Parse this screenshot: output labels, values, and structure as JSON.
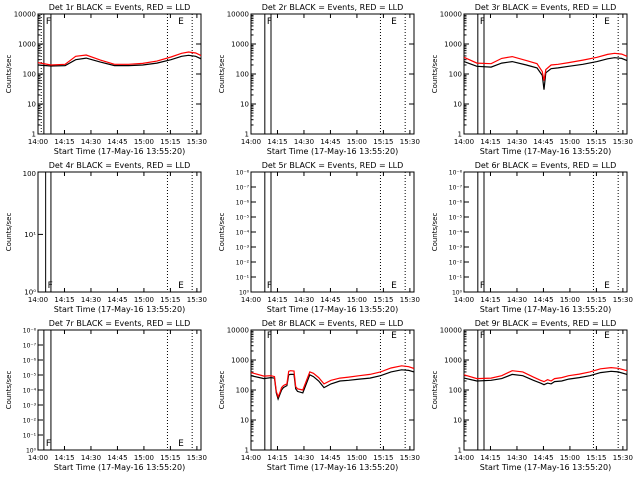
{
  "figure": {
    "background": "#ffffff",
    "axis_color": "#000000",
    "events_color": "#000000",
    "lld_color": "#ff0000"
  },
  "panel_text": {
    "ylabel": "Counts/sec",
    "xlabel": "Start Time (17-May-16 13:55:20)",
    "x_ticks": [
      "14:00",
      "14:15",
      "14:30",
      "14:45",
      "15:00",
      "15:15",
      "15:30"
    ],
    "log_ticks": [
      "1",
      "10",
      "100",
      "1000",
      "10000"
    ],
    "tiny_ticks": [
      "10⁻⁸",
      "10⁻⁷",
      "10⁻⁶",
      "10⁻⁵",
      "10⁻⁴",
      "10⁻³",
      "10⁻²",
      "10⁻¹",
      "10⁰"
    ],
    "pow_ticks": [
      "10⁰",
      "10¹"
    ],
    "marker_F": "F",
    "marker_E": "E"
  },
  "chart_data": [
    {
      "type": "line",
      "title": "Det 1r BLACK = Events, RED = LLD",
      "scale": "log4",
      "x_range_min": [
        4.67,
        97
      ],
      "solid_lines_min": [
        8,
        12
      ],
      "dotted_lines_min": [
        6.5,
        78,
        92
      ],
      "series": [
        {
          "name": "Events",
          "x_min": [
            4.67,
            12,
            20,
            26,
            32,
            40,
            48,
            56,
            64,
            72,
            80,
            86,
            90,
            94,
            97
          ],
          "y": [
            200,
            185,
            190,
            300,
            340,
            250,
            190,
            190,
            200,
            230,
            300,
            390,
            420,
            390,
            320
          ]
        },
        {
          "name": "LLD",
          "x_min": [
            4.67,
            12,
            20,
            26,
            32,
            40,
            48,
            56,
            64,
            72,
            80,
            86,
            90,
            94,
            97
          ],
          "y": [
            240,
            200,
            210,
            390,
            430,
            290,
            210,
            210,
            225,
            270,
            370,
            490,
            540,
            500,
            410
          ]
        }
      ]
    },
    {
      "type": "line",
      "title": "Det 2r BLACK = Events, RED = LLD",
      "scale": "log4",
      "x_range_min": [
        4.67,
        97
      ],
      "solid_lines_min": [
        12.5,
        16
      ],
      "dotted_lines_min": [
        78,
        92
      ],
      "series": []
    },
    {
      "type": "line",
      "title": "Det 3r BLACK = Events, RED = LLD",
      "scale": "log4",
      "x_range_min": [
        4.67,
        97
      ],
      "solid_lines_min": [
        12.5,
        16
      ],
      "dotted_lines_min": [
        78,
        92
      ],
      "series": [
        {
          "name": "Events",
          "x_min": [
            4.67,
            12,
            20,
            26,
            32,
            40,
            46,
            49,
            50,
            51,
            54,
            58,
            64,
            72,
            80,
            86,
            90,
            94,
            97
          ],
          "y": [
            260,
            180,
            170,
            230,
            260,
            200,
            160,
            90,
            30,
            110,
            150,
            160,
            180,
            210,
            260,
            320,
            350,
            330,
            280
          ]
        },
        {
          "name": "LLD",
          "x_min": [
            4.67,
            12,
            20,
            26,
            32,
            40,
            46,
            49,
            50,
            51,
            54,
            58,
            64,
            72,
            80,
            86,
            90,
            94,
            97
          ],
          "y": [
            360,
            230,
            220,
            330,
            380,
            280,
            220,
            120,
            60,
            140,
            200,
            210,
            240,
            290,
            360,
            450,
            490,
            460,
            390
          ]
        }
      ]
    },
    {
      "type": "line",
      "title": "Det 4r BLACK = Events, RED = LLD",
      "scale": "pow",
      "x_range_min": [
        4.67,
        97
      ],
      "solid_lines_min": [
        9,
        12
      ],
      "dotted_lines_min": [
        78,
        92
      ],
      "series": []
    },
    {
      "type": "line",
      "title": "Det 5r BLACK = Events, RED = LLD",
      "scale": "tiny",
      "x_range_min": [
        4.67,
        97
      ],
      "solid_lines_min": [
        12.5,
        16
      ],
      "dotted_lines_min": [
        78,
        92
      ],
      "series": []
    },
    {
      "type": "line",
      "title": "Det 6r BLACK = Events, RED = LLD",
      "scale": "tiny",
      "x_range_min": [
        4.67,
        97
      ],
      "solid_lines_min": [
        12.5,
        16
      ],
      "dotted_lines_min": [
        78,
        92
      ],
      "series": []
    },
    {
      "type": "line",
      "title": "Det 7r BLACK = Events, RED = LLD",
      "scale": "tiny",
      "x_range_min": [
        4.67,
        97
      ],
      "solid_lines_min": [
        8,
        12
      ],
      "dotted_lines_min": [
        78,
        92
      ],
      "series": []
    },
    {
      "type": "line",
      "title": "Det 8r BLACK = Events, RED = LLD",
      "scale": "log4",
      "x_range_min": [
        4.67,
        97
      ],
      "solid_lines_min": [
        12.5,
        16
      ],
      "dotted_lines_min": [
        78,
        92
      ],
      "series": [
        {
          "name": "Events",
          "x_min": [
            4.67,
            12,
            16,
            18,
            19,
            20,
            21,
            22,
            23,
            24,
            25,
            26,
            27,
            29,
            30,
            31,
            34,
            38,
            40,
            43,
            46,
            50,
            55,
            60,
            66,
            72,
            78,
            84,
            90,
            94,
            97
          ],
          "y": [
            300,
            240,
            260,
            250,
            80,
            50,
            70,
            100,
            120,
            130,
            140,
            320,
            330,
            330,
            110,
            90,
            80,
            320,
            280,
            200,
            120,
            160,
            200,
            210,
            230,
            250,
            300,
            400,
            470,
            450,
            400
          ]
        },
        {
          "name": "LLD",
          "x_min": [
            4.67,
            12,
            16,
            18,
            19,
            20,
            21,
            22,
            23,
            24,
            25,
            26,
            27,
            29,
            30,
            31,
            34,
            38,
            40,
            43,
            46,
            50,
            55,
            60,
            66,
            72,
            78,
            84,
            90,
            94,
            97
          ],
          "y": [
            380,
            290,
            300,
            280,
            90,
            60,
            80,
            120,
            140,
            150,
            160,
            420,
            440,
            430,
            130,
            110,
            100,
            400,
            360,
            260,
            160,
            210,
            250,
            270,
            300,
            330,
            400,
            540,
            640,
            600,
            520
          ]
        }
      ]
    },
    {
      "type": "line",
      "title": "Det 9r BLACK = Events, RED = LLD",
      "scale": "log4",
      "x_range_min": [
        4.67,
        97
      ],
      "solid_lines_min": [
        12.5,
        16
      ],
      "dotted_lines_min": [
        78,
        92
      ],
      "series": [
        {
          "name": "Events",
          "x_min": [
            4.67,
            12,
            20,
            26,
            32,
            38,
            44,
            48,
            50,
            52,
            54,
            56,
            60,
            64,
            70,
            76,
            82,
            88,
            92,
            97
          ],
          "y": [
            250,
            200,
            210,
            240,
            330,
            300,
            210,
            170,
            150,
            170,
            160,
            190,
            200,
            230,
            260,
            300,
            380,
            420,
            400,
            330
          ]
        },
        {
          "name": "LLD",
          "x_min": [
            4.67,
            12,
            20,
            26,
            32,
            38,
            44,
            48,
            50,
            52,
            54,
            56,
            60,
            64,
            70,
            76,
            82,
            88,
            92,
            97
          ],
          "y": [
            320,
            240,
            250,
            300,
            440,
            400,
            270,
            210,
            190,
            220,
            200,
            240,
            260,
            300,
            340,
            400,
            510,
            560,
            530,
            440
          ]
        }
      ]
    }
  ]
}
